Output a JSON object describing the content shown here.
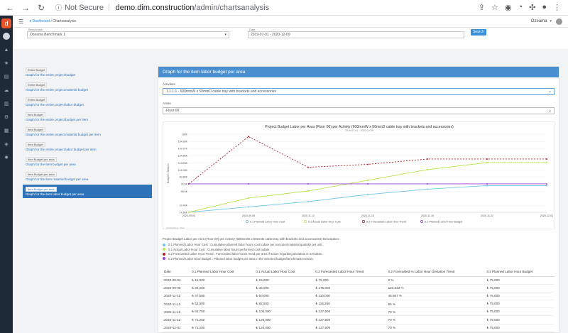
{
  "browser": {
    "security": "Not Secure",
    "domain": "demo.dim.construction",
    "path": "/admin/chartsanalysis"
  },
  "topbar": {
    "breadcrumb_home": "Dashboard",
    "breadcrumb_current": "Chartsanalysis",
    "user": "Ozeama"
  },
  "filters": {
    "project_label": "Benchmark",
    "project_value": "Ozeama Benchmark 1",
    "date_label": "Date",
    "date_value": "2019-07-01 - 2020-12-09",
    "search_label": "Search"
  },
  "left_list": [
    {
      "badge": "Entire Budget",
      "label": "Graph for the entire project budget"
    },
    {
      "badge": "Entire Budget",
      "label": "Graph for the entire project material budget"
    },
    {
      "badge": "Entire Budget",
      "label": "Graph for the entire project labor budget"
    },
    {
      "badge": "Item Budget",
      "label": "Graph for the entire project budget per item"
    },
    {
      "badge": "Item Budget",
      "label": "Graph for the entire project material budget per item"
    },
    {
      "badge": "Item Budget",
      "label": "Graph for the entire project labor budget per item"
    },
    {
      "badge": "Item Budget per area",
      "label": "Graph for the item budget per area"
    },
    {
      "badge": "Item Budget per area",
      "label": "Graph for the item material budget per area"
    },
    {
      "badge": "Item Budget per area",
      "label": "Graph for the item labor budget per area"
    }
  ],
  "panel": {
    "title": "Graph for the item labor budget per area",
    "activities_label": "Activities",
    "activity_value": "1.1.1.1 - 600mmW x 50mmD cable tray with brackets and accessories",
    "areas_label": "Areas",
    "area_value": "Floor 00"
  },
  "chart_data": {
    "type": "line",
    "title": "Project Budget Labor per Area (Floor 00) per Activity (600mmW x 50mmD cable tray with brackets and accessories)",
    "subtitle": "2019-07-01 - 2020-12-09",
    "ylabel": "Budget in Millions",
    "ylim": [
      14.86,
      180
    ],
    "y_ticks": [
      "14.86K",
      "29.46K",
      "58.6K",
      "74.6K",
      "89.86K",
      "104.08K",
      "119.26K",
      "134.86K",
      "149.97K",
      "164.80K",
      "180K"
    ],
    "y_tick_values": [
      14.86,
      29.46,
      58.6,
      74.6,
      89.86,
      104.08,
      119.26,
      134.86,
      149.97,
      164.8,
      180
    ],
    "categories": [
      "2020-09-04",
      "2020-09-05",
      "2020-11-12",
      "2020-11-13",
      "2020-11-16",
      "2020-11-22",
      "2020-12-01"
    ],
    "source_note": "ActivityName: Total",
    "series": [
      {
        "name": "0.1 Planned Labor Hour Cost",
        "color": "#6ec6e6",
        "dash": "",
        "values": [
          15,
          26.25,
          37.5,
          52.5,
          63.75,
          71.25,
          71.25
        ]
      },
      {
        "name": "0.1 Actual Labor Hour Cost",
        "color": "#b8e34a",
        "dash": "",
        "values": [
          15,
          45,
          60,
          82.5,
          105,
          120,
          120
        ]
      },
      {
        "name": "0.2 Forecasted Labor Hour Trend",
        "color": "#b0202a",
        "dash": "2,2",
        "values": [
          75,
          175,
          110,
          116.25,
          127.5,
          127.5,
          127.5
        ]
      },
      {
        "name": "0.2 Planned Labor Hour Budget",
        "color": "#9b3fd6",
        "dash": "",
        "values": [
          75,
          75,
          75,
          75,
          75,
          75,
          75
        ]
      }
    ]
  },
  "description": {
    "intro": "Project Budget Labor per Area (Floor 00) per Activity (600mmW x 50mmD cable tray with brackets and accessories) Description:",
    "items": [
      {
        "color": "#6ec6e6",
        "text": "0.1 Planned Labor Hour Cost : Cumulative planned labor hours cost todate per executed material quantity per unit."
      },
      {
        "color": "#b8e34a",
        "text": "0.1 Actual Labor Hour Cost : Cumulative labor hours performed cost todate."
      },
      {
        "color": "#b0202a",
        "text": "0.2 Forecasted Labor Hour Trend : Forecasted labor hours trend per area if action regarding deviation is not taken."
      },
      {
        "color": "#9b3fd6",
        "text": "0.2 Planned Labor Hour Budget : Planned labor budget per area in the selected budget/benchmark revision."
      }
    ]
  },
  "table": {
    "headers": [
      "Date",
      "0.1 Planned Labor Hour Cost",
      "0.1 Actual Labor Hour Cost",
      "0.2 Forecasted Labor Hour Trend",
      "0.2 Forecasted % Labor Hour Deviation Trend",
      "0.2 Planned Labor Hour Budget"
    ],
    "rows": [
      [
        "2020-09-04",
        "₺ 15,000",
        "₺ 15,000",
        "₺ 75,000",
        "0 %",
        "₺ 75,000"
      ],
      [
        "2020-09-05",
        "₺ 26,250",
        "₺ 45,000",
        "₺ 175,000",
        "133.333 %",
        "₺ 75,000"
      ],
      [
        "2020-11-12",
        "₺ 37,500",
        "₺ 60,000",
        "₺ 110,000",
        "46.667 %",
        "₺ 75,000"
      ],
      [
        "2020-11-13",
        "₺ 52,500",
        "₺ 82,500",
        "₺ 116,250",
        "55 %",
        "₺ 75,000"
      ],
      [
        "2020-11-16",
        "₺ 63,750",
        "₺ 105,000",
        "₺ 127,500",
        "70 %",
        "₺ 75,000"
      ],
      [
        "2020-11-22",
        "₺ 71,250",
        "₺ 120,000",
        "₺ 127,500",
        "70 %",
        "₺ 75,000"
      ],
      [
        "2020-12-01",
        "₺ 71,250",
        "₺ 120,000",
        "₺ 127,500",
        "70 %",
        "₺ 75,000"
      ]
    ]
  }
}
